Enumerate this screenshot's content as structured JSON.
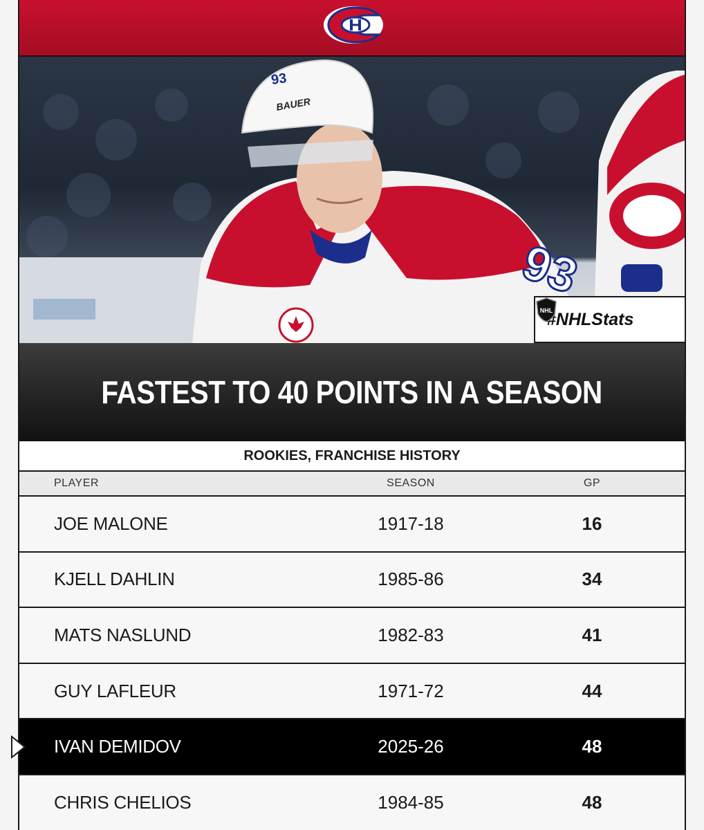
{
  "colors": {
    "team_red": "#c8102e",
    "team_blue": "#1b2e8c",
    "highlight_row": "#000000"
  },
  "header": {
    "logo_icon": "canadiens-logo-icon"
  },
  "photo": {
    "jersey_number": "93",
    "helmet_brand": "BAUER"
  },
  "badge": {
    "hashtag": "#NHLStats",
    "logo_icon": "nhl-shield-icon"
  },
  "title": "FASTEST TO 40 POINTS IN A SEASON",
  "subtitle": "ROOKIES, FRANCHISE HISTORY",
  "table": {
    "columns": {
      "player": "PLAYER",
      "season": "SEASON",
      "gp": "GP"
    },
    "rows": [
      {
        "player": "JOE MALONE",
        "season": "1917-18",
        "gp": "16",
        "highlighted": false
      },
      {
        "player": "KJELL DAHLIN",
        "season": "1985-86",
        "gp": "34",
        "highlighted": false
      },
      {
        "player": "MATS NASLUND",
        "season": "1982-83",
        "gp": "41",
        "highlighted": false
      },
      {
        "player": "GUY LAFLEUR",
        "season": "1971-72",
        "gp": "44",
        "highlighted": false
      },
      {
        "player": "IVAN DEMIDOV",
        "season": "2025-26",
        "gp": "48",
        "highlighted": true
      },
      {
        "player": "CHRIS CHELIOS",
        "season": "1984-85",
        "gp": "48",
        "highlighted": false
      }
    ]
  }
}
